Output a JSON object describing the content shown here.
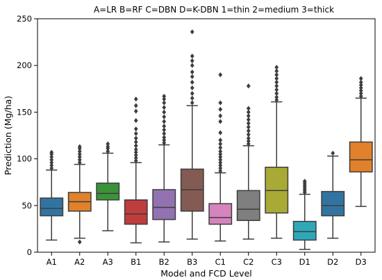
{
  "chart_data": {
    "type": "box",
    "title": "A=LR  B=RF  C=DBN  D=K-DBN   1=thin  2=medium  3=thick",
    "xlabel": "Model and FCD Level",
    "ylabel": "Prediction (Mg/ha)",
    "ylim": [
      0,
      250
    ],
    "yticks": [
      0,
      50,
      100,
      150,
      200,
      250
    ],
    "grid": false,
    "legend": "none",
    "categories": [
      "A1",
      "A2",
      "A3",
      "B1",
      "B2",
      "B3",
      "C1",
      "C2",
      "C3",
      "D1",
      "D2",
      "D3"
    ],
    "boxes": [
      {
        "label": "A1",
        "whisker_low": 13,
        "q1": 39,
        "median": 47,
        "q3": 58,
        "whisker_high": 88,
        "outliers": [
          90,
          93,
          96,
          99,
          102,
          105,
          107
        ],
        "color": "#3274a1"
      },
      {
        "label": "A2",
        "whisker_low": 15,
        "q1": 44,
        "median": 54,
        "q3": 64,
        "whisker_high": 94,
        "outliers": [
          11,
          96,
          99,
          102,
          105,
          108,
          111,
          113
        ],
        "color": "#e1812c"
      },
      {
        "label": "A3",
        "whisker_low": 23,
        "q1": 56,
        "median": 63,
        "q3": 74,
        "whisker_high": 106,
        "outliers": [
          108,
          111,
          113,
          116
        ],
        "color": "#3a923a"
      },
      {
        "label": "B1",
        "whisker_low": 10,
        "q1": 30,
        "median": 41,
        "q3": 56,
        "whisker_high": 96,
        "outliers": [
          98,
          101,
          104,
          107,
          110,
          114,
          118,
          122,
          127,
          132,
          141,
          151,
          157,
          164
        ],
        "color": "#c03d3e"
      },
      {
        "label": "B2",
        "whisker_low": 11,
        "q1": 35,
        "median": 48,
        "q3": 67,
        "whisker_high": 115,
        "outliers": [
          117,
          120,
          123,
          127,
          131,
          135,
          140,
          145,
          150,
          155,
          160,
          164,
          167
        ],
        "color": "#9372b2"
      },
      {
        "label": "B3",
        "whisker_low": 14,
        "q1": 44,
        "median": 67,
        "q3": 89,
        "whisker_high": 157,
        "outliers": [
          160,
          165,
          170,
          176,
          182,
          188,
          193,
          200,
          205,
          210,
          236
        ],
        "color": "#845b53"
      },
      {
        "label": "C1",
        "whisker_low": 12,
        "q1": 30,
        "median": 37,
        "q3": 52,
        "whisker_high": 85,
        "outliers": [
          87,
          90,
          93,
          96,
          99,
          102,
          105,
          108,
          112,
          116,
          120,
          128,
          140,
          146,
          153,
          160,
          190
        ],
        "color": "#d684bd"
      },
      {
        "label": "C2",
        "whisker_low": 14,
        "q1": 34,
        "median": 46,
        "q3": 66,
        "whisker_high": 114,
        "outliers": [
          116,
          119,
          122,
          126,
          130,
          134,
          138,
          142,
          146,
          150,
          154,
          178
        ],
        "color": "#7f7f7f"
      },
      {
        "label": "C3",
        "whisker_low": 15,
        "q1": 42,
        "median": 66,
        "q3": 91,
        "whisker_high": 161,
        "outliers": [
          163,
          166,
          170,
          174,
          178,
          182,
          186,
          190,
          194,
          198
        ],
        "color": "#a9aa35"
      },
      {
        "label": "D1",
        "whisker_low": 3,
        "q1": 13,
        "median": 22,
        "q3": 33,
        "whisker_high": 62,
        "outliers": [
          64,
          66,
          68,
          70,
          72,
          74,
          76
        ],
        "color": "#2ea8b8"
      },
      {
        "label": "D2",
        "whisker_low": 15,
        "q1": 39,
        "median": 50,
        "q3": 65,
        "whisker_high": 103,
        "outliers": [
          106
        ],
        "color": "#3274a1"
      },
      {
        "label": "D3",
        "whisker_low": 49,
        "q1": 86,
        "median": 99,
        "q3": 118,
        "whisker_high": 165,
        "outliers": [
          167,
          170,
          173,
          176,
          179,
          182,
          186
        ],
        "color": "#e1812c"
      }
    ]
  }
}
